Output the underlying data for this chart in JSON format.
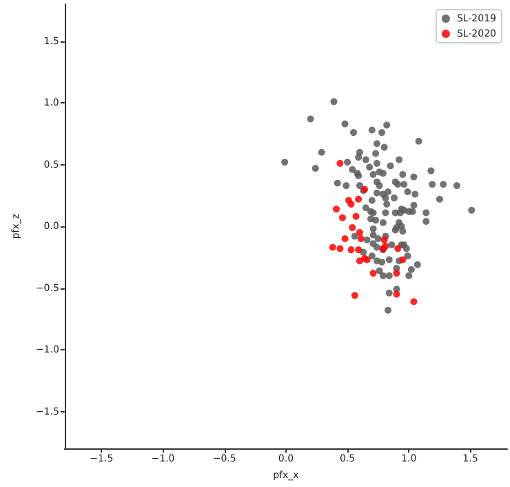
{
  "chart_data": {
    "type": "scatter",
    "xlabel": "pfx_x",
    "ylabel": "pfx_z",
    "xlim": [
      -1.8,
      1.8
    ],
    "ylim": [
      -1.8,
      1.8
    ],
    "xticks": [
      {
        "value": -1.5,
        "label": "−1.5"
      },
      {
        "value": -1.0,
        "label": "−1.0"
      },
      {
        "value": -0.5,
        "label": "−0.5"
      },
      {
        "value": 0.0,
        "label": "0.0"
      },
      {
        "value": 0.5,
        "label": "0.5"
      },
      {
        "value": 1.0,
        "label": "1.0"
      },
      {
        "value": 1.5,
        "label": "1.5"
      }
    ],
    "yticks": [
      {
        "value": -1.5,
        "label": "−1.5"
      },
      {
        "value": -1.0,
        "label": "−1.0"
      },
      {
        "value": -0.5,
        "label": "−0.5"
      },
      {
        "value": 0.0,
        "label": "0.0"
      },
      {
        "value": 0.5,
        "label": "0.5"
      },
      {
        "value": 1.0,
        "label": "1.0"
      },
      {
        "value": 1.5,
        "label": "1.5"
      }
    ],
    "grid": false,
    "legend": "top right",
    "marker": "circle",
    "series": [
      {
        "name": "SL-2019",
        "color": "#5a5a5a",
        "x": [
          0.39,
          0.2,
          -0.01,
          0.48,
          0.55,
          0.7,
          0.82,
          0.78,
          1.08,
          0.74,
          0.8,
          0.29,
          0.6,
          0.24,
          0.5,
          0.59,
          0.65,
          0.73,
          0.74,
          0.85,
          0.92,
          0.68,
          0.54,
          0.58,
          0.59,
          0.71,
          0.76,
          0.79,
          1.18,
          1.04,
          0.95,
          0.42,
          0.49,
          0.6,
          0.74,
          0.76,
          0.89,
          0.91,
          0.96,
          1.19,
          1.28,
          1.39,
          0.63,
          0.74,
          0.79,
          0.83,
          0.99,
          1.05,
          1.25,
          0.7,
          0.81,
          0.88,
          0.82,
          0.65,
          0.94,
          0.96,
          1.04,
          1.51,
          0.69,
          0.71,
          0.81,
          0.89,
          0.93,
          1.0,
          1.03,
          1.14,
          1.14,
          0.73,
          0.69,
          0.79,
          0.92,
          0.94,
          0.9,
          0.89,
          0.95,
          0.71,
          0.56,
          0.71,
          0.75,
          0.81,
          0.66,
          0.71,
          0.74,
          0.86,
          0.94,
          0.96,
          0.98,
          0.79,
          0.7,
          0.99,
          0.92,
          0.74,
          0.78,
          0.84,
          1.07,
          0.76,
          1.02,
          0.9,
          0.79,
          0.84,
          1.0,
          0.9,
          0.84,
          0.83,
          0.63
        ],
        "values": [
          1.01,
          0.87,
          0.52,
          0.83,
          0.76,
          0.78,
          0.82,
          0.76,
          0.69,
          0.67,
          0.64,
          0.6,
          0.6,
          0.47,
          0.52,
          0.56,
          0.54,
          0.59,
          0.51,
          0.49,
          0.54,
          0.48,
          0.46,
          0.43,
          0.41,
          0.42,
          0.44,
          0.43,
          0.45,
          0.4,
          0.42,
          0.35,
          0.33,
          0.33,
          0.36,
          0.33,
          0.36,
          0.34,
          0.34,
          0.34,
          0.34,
          0.33,
          0.29,
          0.27,
          0.26,
          0.28,
          0.28,
          0.26,
          0.22,
          0.21,
          0.23,
          0.23,
          0.18,
          0.15,
          0.14,
          0.13,
          0.17,
          0.13,
          0.12,
          0.11,
          0.11,
          0.11,
          0.11,
          0.12,
          0.12,
          0.11,
          0.04,
          0.05,
          0.06,
          0.03,
          0.03,
          0.0,
          -0.01,
          -0.03,
          -0.04,
          -0.02,
          -0.08,
          -0.07,
          -0.1,
          -0.08,
          -0.11,
          -0.14,
          -0.17,
          -0.15,
          -0.15,
          -0.15,
          -0.18,
          -0.19,
          -0.24,
          -0.24,
          -0.28,
          -0.28,
          -0.29,
          -0.27,
          -0.31,
          -0.36,
          -0.35,
          -0.34,
          -0.4,
          -0.4,
          -0.4,
          -0.51,
          -0.54,
          -0.68,
          -0.21
        ]
      },
      {
        "name": "SL-2020",
        "color": "#ff0000",
        "x": [
          0.44,
          0.64,
          0.59,
          0.51,
          0.53,
          0.41,
          0.57,
          0.46,
          0.54,
          0.6,
          0.48,
          0.61,
          0.38,
          0.44,
          0.53,
          0.59,
          0.8,
          0.81,
          0.79,
          0.91,
          0.6,
          0.64,
          0.66,
          0.95,
          0.71,
          0.9,
          0.56,
          0.9,
          1.04
        ],
        "values": [
          0.51,
          0.3,
          0.22,
          0.21,
          0.18,
          0.14,
          0.08,
          0.07,
          -0.01,
          -0.05,
          -0.1,
          -0.1,
          -0.17,
          -0.18,
          -0.19,
          -0.19,
          -0.11,
          -0.16,
          -0.18,
          -0.18,
          -0.28,
          -0.26,
          -0.27,
          -0.27,
          -0.38,
          -0.38,
          -0.56,
          -0.55,
          -0.61
        ]
      }
    ]
  }
}
